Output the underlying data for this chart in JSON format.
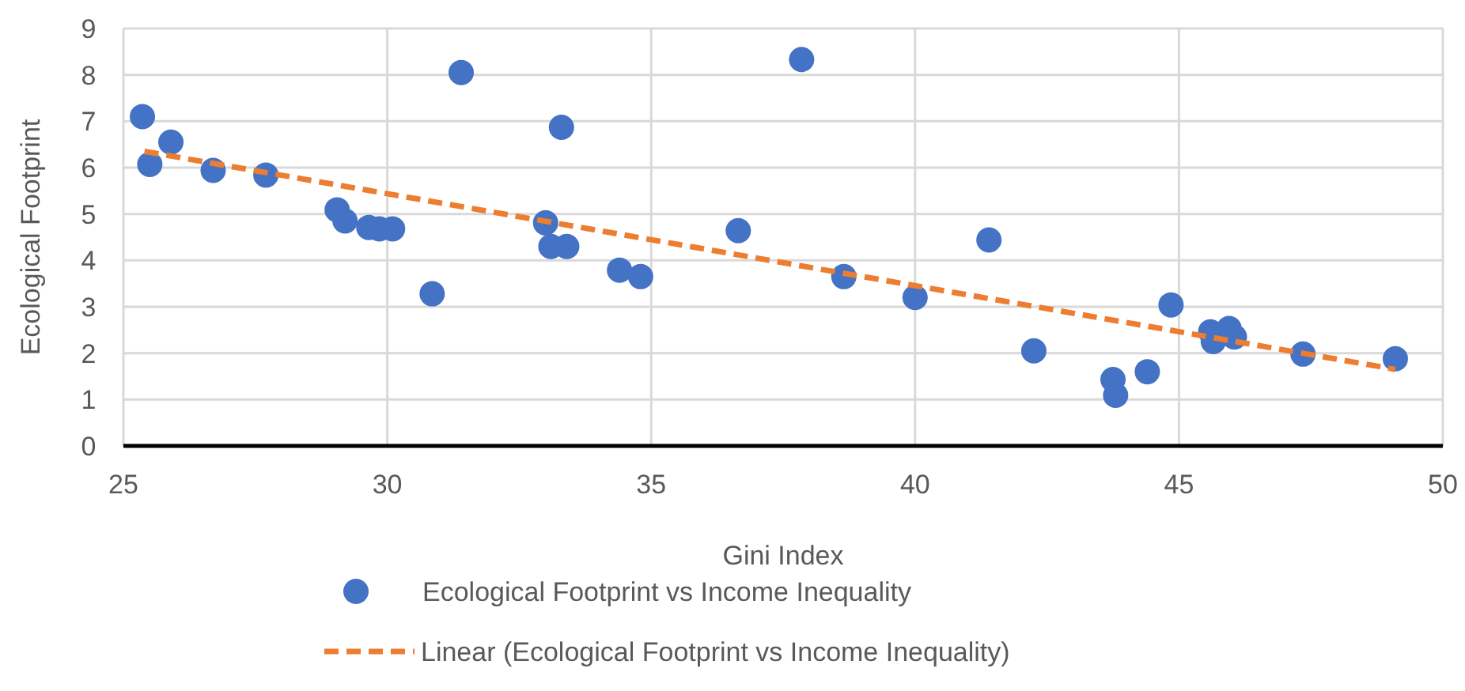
{
  "chart_data": {
    "type": "scatter",
    "xlabel": "Gini Index",
    "ylabel": "Ecological Footprint",
    "xlim": [
      25,
      50
    ],
    "xticks": [
      25,
      30,
      35,
      40,
      45,
      50
    ],
    "ylim": [
      0,
      9
    ],
    "yticks": [
      0,
      1,
      2,
      3,
      4,
      5,
      6,
      7,
      8,
      9
    ],
    "grid": true,
    "legend": "bottom",
    "series": [
      {
        "name": "Ecological Footprint vs Income Inequality",
        "color": "#4472c4",
        "marker": "circle",
        "x": [
          25.36,
          25.5,
          25.9,
          26.7,
          27.7,
          29.05,
          29.2,
          29.65,
          29.85,
          30.1,
          30.85,
          31.4,
          33.3,
          33.0,
          33.1,
          33.4,
          34.4,
          34.8,
          36.65,
          37.85,
          38.65,
          40.0,
          41.4,
          42.25,
          43.75,
          43.8,
          44.4,
          44.85,
          45.6,
          45.65,
          45.95,
          46.05,
          47.35,
          49.1
        ],
        "values": [
          7.1,
          6.07,
          6.55,
          5.94,
          5.84,
          5.09,
          4.85,
          4.71,
          4.68,
          4.68,
          3.28,
          8.05,
          6.87,
          4.81,
          4.3,
          4.3,
          3.79,
          3.65,
          4.64,
          8.33,
          3.65,
          3.2,
          4.44,
          2.05,
          1.43,
          1.09,
          1.6,
          3.04,
          2.46,
          2.25,
          2.53,
          2.35,
          1.98,
          1.88
        ]
      },
      {
        "name": "Linear (Ecological Footprint vs Income Inequality)",
        "type": "line",
        "color": "#ed7d31",
        "line_style": "dashed",
        "x": [
          25.4,
          49.1
        ],
        "values": [
          6.35,
          1.65
        ]
      }
    ]
  }
}
